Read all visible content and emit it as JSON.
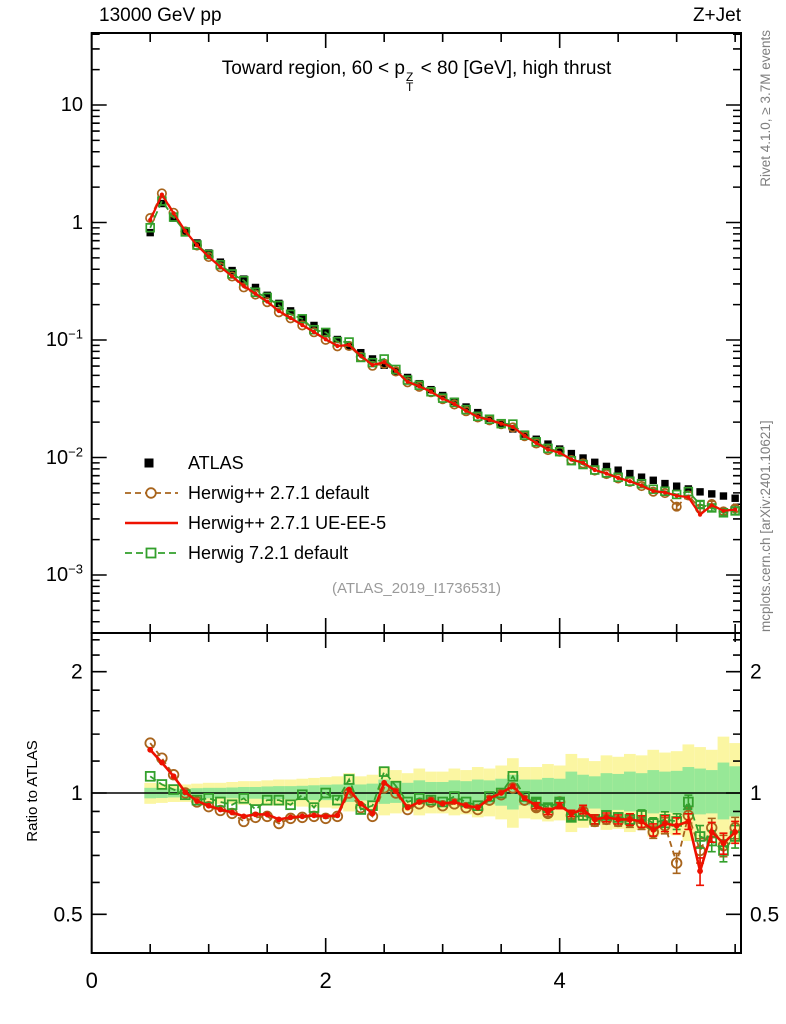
{
  "header": {
    "beam": "13000 GeV pp",
    "process": "Z+Jet"
  },
  "panel_title": {
    "pre": "Toward region, 60 < p",
    "sup": "Z",
    "sub": "T",
    "post": " < 80 [GeV], high thrust"
  },
  "side_labels": {
    "top_right": "Rivet 4.1.0, ≥ 3.7M events",
    "bottom_right": "mcplots.cern.ch [arXiv:2401.10621]"
  },
  "watermark": "(ATLAS_2019_I1736531)",
  "ratio_axis_label": "Ratio to ATLAS",
  "legend": {
    "items": [
      {
        "label": "ATLAS",
        "marker": "filled-square"
      },
      {
        "label": "Herwig++ 2.7.1 default",
        "marker": "open-circle-dashed"
      },
      {
        "label": "Herwig++ 2.7.1 UE-EE-5",
        "marker": "solid-line"
      },
      {
        "label": "Herwig 7.2.1 default",
        "marker": "open-square-dashed"
      }
    ]
  },
  "colors": {
    "atlas": "#000000",
    "herwigpp_default": "#a8641c",
    "herwigpp_ueee5": "#ee1100",
    "herwig7_default": "#33a02c",
    "band_inner": "#97e897",
    "band_outer": "#fbf6a2",
    "gray_text": "#7f7f7f"
  },
  "chart_data": {
    "type": "line",
    "title": "Toward region, 60 < pT(Z) < 80 [GeV], high thrust",
    "xlabel": "",
    "ylabel_ratio": "Ratio to ATLAS",
    "x_axis": {
      "range": [
        0,
        5.55
      ],
      "major_ticks": [
        0,
        2,
        4
      ],
      "major_tick_labels": [
        "0",
        "2",
        "4"
      ],
      "minor_ticks": [
        0.5,
        1,
        1.5,
        2.5,
        3,
        3.5,
        4.5,
        5,
        5.5
      ]
    },
    "y_axis_main": {
      "scale": "log",
      "range": [
        0.00032,
        41
      ],
      "tick_labels": [
        {
          "value": 10,
          "base": "10",
          "exp": ""
        },
        {
          "value": 1,
          "base": "1",
          "exp": ""
        },
        {
          "value": 0.1,
          "base": "10",
          "exp": "−1"
        },
        {
          "value": 0.01,
          "base": "10",
          "exp": "−2"
        },
        {
          "value": 0.001,
          "base": "10",
          "exp": "−3"
        }
      ]
    },
    "y_axis_ratio": {
      "scale": "log",
      "range": [
        0.4,
        2.5
      ],
      "tick_labels": [
        {
          "value": 2,
          "label": "2"
        },
        {
          "value": 1,
          "label": "1"
        },
        {
          "value": 0.5,
          "label": "0.5"
        }
      ],
      "minor_ticks": [
        0.6,
        0.7,
        0.8,
        0.9,
        1.2,
        1.4,
        1.6,
        1.8,
        2.2,
        2.4
      ]
    },
    "x": [
      0.5,
      0.6,
      0.7,
      0.8,
      0.9,
      1,
      1.1,
      1.2,
      1.3,
      1.4,
      1.5,
      1.6,
      1.7,
      1.8,
      1.9,
      2,
      2.1,
      2.2,
      2.3,
      2.4,
      2.5,
      2.6,
      2.7,
      2.8,
      2.9,
      3,
      3.1,
      3.2,
      3.3,
      3.4,
      3.5,
      3.6,
      3.7,
      3.8,
      3.9,
      4,
      4.1,
      4.2,
      4.3,
      4.4,
      4.5,
      4.6,
      4.7,
      4.8,
      4.9,
      5,
      5.1,
      5.2,
      5.3,
      5.4,
      5.5
    ],
    "series": [
      {
        "name": "ATLAS",
        "role": "data",
        "values": [
          0.82,
          1.45,
          1.09,
          0.84,
          0.67,
          0.55,
          0.46,
          0.39,
          0.33,
          0.28,
          0.24,
          0.205,
          0.177,
          0.153,
          0.133,
          0.116,
          0.101,
          0.089,
          0.078,
          0.069,
          0.061,
          0.054,
          0.048,
          0.0425,
          0.0378,
          0.0337,
          0.0301,
          0.0269,
          0.0241,
          0.0216,
          0.0194,
          0.0175,
          0.0158,
          0.0143,
          0.013,
          0.0118,
          0.0108,
          0.0099,
          0.0091,
          0.0084,
          0.0078,
          0.0073,
          0.0068,
          0.0064,
          0.006,
          0.0057,
          0.0054,
          0.0051,
          0.0049,
          0.0047,
          0.0045
        ]
      },
      {
        "name": "Herwig++ 2.7.1 default",
        "role": "mc",
        "ratio_to_data": [
          1.33,
          1.22,
          1.11,
          1.0,
          0.95,
          0.925,
          0.905,
          0.89,
          0.85,
          0.87,
          0.875,
          0.84,
          0.865,
          0.87,
          0.875,
          0.865,
          0.875,
          1.0,
          0.92,
          0.875,
          1.03,
          1.0,
          0.91,
          0.94,
          0.95,
          0.93,
          0.94,
          0.92,
          0.91,
          0.96,
          0.99,
          1.03,
          0.96,
          0.92,
          0.89,
          0.95,
          0.88,
          0.9,
          0.85,
          0.86,
          0.85,
          0.85,
          0.84,
          0.8,
          0.83,
          0.67,
          0.88,
          0.72,
          0.82,
          0.74,
          0.82
        ]
      },
      {
        "name": "Herwig++ 2.7.1 UE-EE-5",
        "role": "mc",
        "ratio_to_data": [
          1.28,
          1.19,
          1.1,
          1.005,
          0.955,
          0.93,
          0.91,
          0.895,
          0.875,
          0.885,
          0.885,
          0.86,
          0.87,
          0.875,
          0.88,
          0.875,
          0.88,
          1.02,
          0.94,
          0.89,
          1.06,
          1.01,
          0.92,
          0.95,
          0.96,
          0.94,
          0.95,
          0.93,
          0.92,
          0.97,
          1.0,
          1.04,
          0.97,
          0.93,
          0.9,
          0.93,
          0.89,
          0.91,
          0.86,
          0.87,
          0.86,
          0.86,
          0.85,
          0.81,
          0.84,
          0.83,
          0.85,
          0.64,
          0.8,
          0.75,
          0.8
        ]
      },
      {
        "name": "Herwig 7.2.1 default",
        "role": "mc",
        "ratio_to_data": [
          1.1,
          1.05,
          1.02,
          0.99,
          0.96,
          0.97,
          0.95,
          0.935,
          0.97,
          0.91,
          0.96,
          0.96,
          0.935,
          0.99,
          0.92,
          1.0,
          0.96,
          1.08,
          0.91,
          0.93,
          1.13,
          1.04,
          0.95,
          0.97,
          0.96,
          0.95,
          0.98,
          0.95,
          0.93,
          0.98,
          1.0,
          1.1,
          0.98,
          0.95,
          0.92,
          0.95,
          0.87,
          0.88,
          0.86,
          0.88,
          0.87,
          0.86,
          0.88,
          0.84,
          0.86,
          0.85,
          0.95,
          0.78,
          0.76,
          0.72,
          0.78
        ]
      }
    ],
    "ratio_stat_err": [
      0.008,
      0.008,
      0.008,
      0.008,
      0.008,
      0.008,
      0.008,
      0.008,
      0.008,
      0.008,
      0.008,
      0.008,
      0.008,
      0.008,
      0.008,
      0.008,
      0.008,
      0.008,
      0.008,
      0.008,
      0.008,
      0.008,
      0.008,
      0.008,
      0.008,
      0.008,
      0.008,
      0.008,
      0.012,
      0.012,
      0.012,
      0.012,
      0.012,
      0.016,
      0.016,
      0.016,
      0.016,
      0.022,
      0.022,
      0.022,
      0.022,
      0.028,
      0.028,
      0.028,
      0.038,
      0.038,
      0.038,
      0.05,
      0.045,
      0.045,
      0.05
    ],
    "uncertainty_bands": {
      "outer_hi": [
        1.06,
        1.055,
        1.05,
        1.05,
        1.055,
        1.06,
        1.06,
        1.065,
        1.07,
        1.07,
        1.075,
        1.08,
        1.08,
        1.085,
        1.09,
        1.095,
        1.1,
        1.12,
        1.1,
        1.11,
        1.16,
        1.14,
        1.12,
        1.15,
        1.13,
        1.13,
        1.15,
        1.14,
        1.16,
        1.15,
        1.17,
        1.22,
        1.16,
        1.16,
        1.18,
        1.17,
        1.25,
        1.22,
        1.2,
        1.24,
        1.23,
        1.25,
        1.24,
        1.28,
        1.26,
        1.27,
        1.32,
        1.3,
        1.28,
        1.38,
        1.33
      ],
      "outer_lo": [
        0.94,
        0.945,
        0.95,
        0.95,
        0.945,
        0.94,
        0.94,
        0.94,
        0.935,
        0.935,
        0.93,
        0.93,
        0.93,
        0.925,
        0.92,
        0.92,
        0.915,
        0.9,
        0.915,
        0.91,
        0.88,
        0.89,
        0.9,
        0.88,
        0.89,
        0.89,
        0.88,
        0.885,
        0.87,
        0.875,
        0.86,
        0.82,
        0.865,
        0.86,
        0.85,
        0.855,
        0.8,
        0.82,
        0.83,
        0.81,
        0.815,
        0.8,
        0.81,
        0.78,
        0.79,
        0.785,
        0.76,
        0.77,
        0.78,
        0.72,
        0.75
      ],
      "inner_hi": [
        1.03,
        1.028,
        1.025,
        1.025,
        1.028,
        1.03,
        1.03,
        1.032,
        1.035,
        1.035,
        1.038,
        1.04,
        1.04,
        1.042,
        1.045,
        1.048,
        1.05,
        1.06,
        1.05,
        1.055,
        1.08,
        1.07,
        1.06,
        1.075,
        1.065,
        1.065,
        1.075,
        1.07,
        1.08,
        1.075,
        1.085,
        1.11,
        1.08,
        1.08,
        1.09,
        1.085,
        1.13,
        1.11,
        1.1,
        1.12,
        1.115,
        1.13,
        1.12,
        1.14,
        1.13,
        1.135,
        1.16,
        1.15,
        1.14,
        1.19,
        1.165
      ],
      "inner_lo": [
        0.97,
        0.972,
        0.975,
        0.975,
        0.972,
        0.97,
        0.97,
        0.97,
        0.968,
        0.968,
        0.965,
        0.965,
        0.965,
        0.962,
        0.96,
        0.96,
        0.958,
        0.95,
        0.958,
        0.955,
        0.94,
        0.945,
        0.95,
        0.94,
        0.945,
        0.945,
        0.94,
        0.942,
        0.935,
        0.938,
        0.93,
        0.91,
        0.932,
        0.93,
        0.925,
        0.928,
        0.9,
        0.91,
        0.915,
        0.905,
        0.908,
        0.9,
        0.905,
        0.89,
        0.895,
        0.893,
        0.88,
        0.885,
        0.89,
        0.86,
        0.875
      ]
    },
    "legend_position": "inside-left-middle",
    "grid": false
  }
}
